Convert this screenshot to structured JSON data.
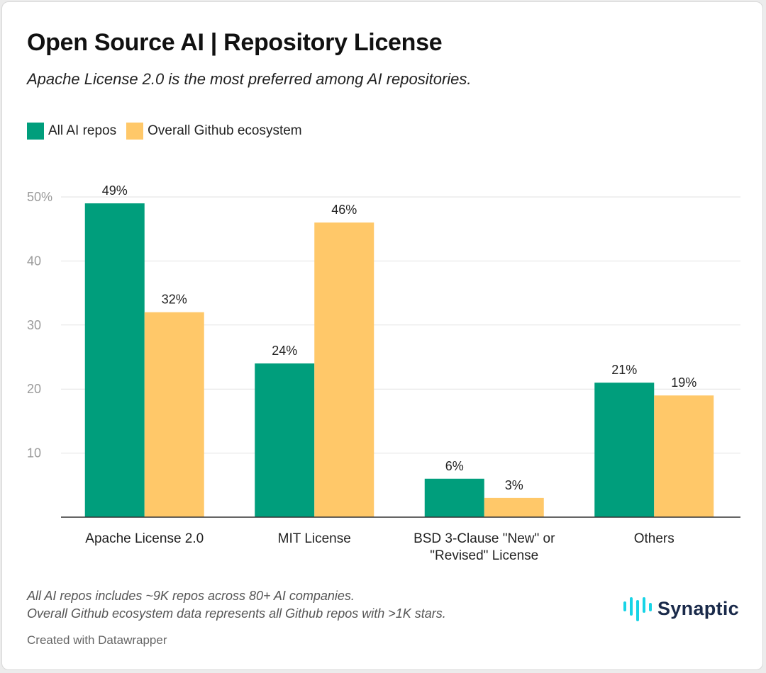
{
  "title": "Open Source AI | Repository License",
  "subtitle": "Apache License 2.0 is the most preferred among AI repositories.",
  "legend": [
    {
      "label": "All AI repos",
      "color": "#009e7c"
    },
    {
      "label": "Overall Github ecosystem",
      "color": "#ffc869"
    }
  ],
  "chart_data": {
    "type": "bar",
    "title": "Open Source AI | Repository License",
    "xlabel": "",
    "ylabel": "",
    "ylim": [
      0,
      50
    ],
    "yticks": [
      10,
      20,
      30,
      40,
      50
    ],
    "ytick_labels": [
      "10",
      "20",
      "30",
      "40",
      "50%"
    ],
    "grid": true,
    "legend_position": "top-left",
    "categories": [
      [
        "Apache License 2.0"
      ],
      [
        "MIT License"
      ],
      [
        "BSD 3-Clause \"New\" or",
        "\"Revised\" License"
      ],
      [
        "Others"
      ]
    ],
    "series": [
      {
        "name": "All AI repos",
        "color": "#009e7c",
        "values": [
          49,
          24,
          6,
          21
        ],
        "labels": [
          "49%",
          "24%",
          "6%",
          "21%"
        ]
      },
      {
        "name": "Overall Github ecosystem",
        "color": "#ffc869",
        "values": [
          32,
          46,
          3,
          19
        ],
        "labels": [
          "32%",
          "46%",
          "3%",
          "19%"
        ]
      }
    ]
  },
  "notes": [
    "All AI repos includes ~9K repos across 80+ AI companies.",
    "Overall Github ecosystem data represents all Github repos with >1K stars."
  ],
  "credit": "Created with Datawrapper",
  "logo": {
    "text": "Synaptic",
    "icon": "soundwave-icon",
    "color": "#18d4e6"
  }
}
